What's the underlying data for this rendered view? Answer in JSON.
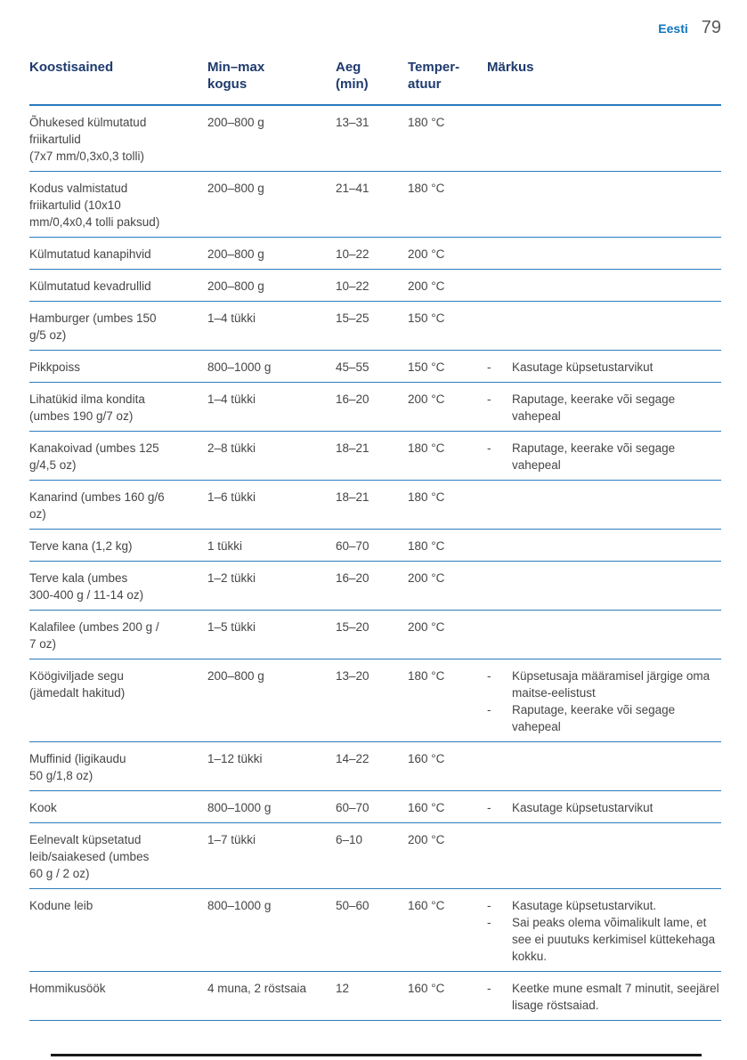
{
  "page": {
    "language_label": "Eesti",
    "page_number": "79"
  },
  "colors": {
    "accent_blue": "#1175bc",
    "header_navy": "#1e3a6e",
    "rule_blue": "#2b7cbd",
    "body_text": "#454545",
    "page_number_gray": "#58585a",
    "footer_rule": "#1a1a1a"
  },
  "table": {
    "columns": [
      {
        "label": "Koostisained"
      },
      {
        "label": "Min–max\nkogus"
      },
      {
        "label": "Aeg\n(min)"
      },
      {
        "label": "Temper-\natuur"
      },
      {
        "label": "Märkus"
      }
    ],
    "note_dash": "-",
    "rows": [
      {
        "ingredient": "Õhukesed külmutatud\nfriikartulid\n(7x7 mm/0,3x0,3 tolli)",
        "quantity": "200–800 g",
        "time": "13–31",
        "temperature": "180 °C",
        "notes": []
      },
      {
        "ingredient": "Kodus valmistatud\nfriikartulid (10x10\nmm/0,4x0,4 tolli paksud)",
        "quantity": "200–800 g",
        "time": "21–41",
        "temperature": "180 °C",
        "notes": []
      },
      {
        "ingredient": "Külmutatud kanapihvid",
        "quantity": "200–800 g",
        "time": "10–22",
        "temperature": "200 °C",
        "notes": []
      },
      {
        "ingredient": "Külmutatud kevadrullid",
        "quantity": "200–800 g",
        "time": "10–22",
        "temperature": "200 °C",
        "notes": []
      },
      {
        "ingredient": "Hamburger (umbes 150\ng/5 oz)",
        "quantity": "1–4 tükki",
        "time": "15–25",
        "temperature": "150 °C",
        "notes": []
      },
      {
        "ingredient": "Pikkpoiss",
        "quantity": "800–1000 g",
        "time": "45–55",
        "temperature": "150 °C",
        "notes": [
          "Kasutage küpsetustarvikut"
        ]
      },
      {
        "ingredient": "Lihatükid ilma kondita\n(umbes 190 g/7 oz)",
        "quantity": "1–4 tükki",
        "time": "16–20",
        "temperature": "200 °C",
        "notes": [
          "Raputage, keerake või segage vahepeal"
        ]
      },
      {
        "ingredient": "Kanakoivad (umbes 125\ng/4,5 oz)",
        "quantity": "2–8 tükki",
        "time": "18–21",
        "temperature": "180 °C",
        "notes": [
          "Raputage, keerake või segage vahepeal"
        ]
      },
      {
        "ingredient": "Kanarind (umbes 160 g/6\noz)",
        "quantity": "1–6 tükki",
        "time": "18–21",
        "temperature": "180 °C",
        "notes": []
      },
      {
        "ingredient": "Terve kana (1,2 kg)",
        "quantity": "1 tükki",
        "time": "60–70",
        "temperature": "180 °C",
        "notes": []
      },
      {
        "ingredient": "Terve kala (umbes\n300-400 g / 11-14 oz)",
        "quantity": "1–2 tükki",
        "time": "16–20",
        "temperature": "200 °C",
        "notes": []
      },
      {
        "ingredient": "Kalafilee (umbes 200 g /\n7 oz)",
        "quantity": "1–5 tükki",
        "time": "15–20",
        "temperature": "200 °C",
        "notes": []
      },
      {
        "ingredient": "Köögiviljade segu\n(jämedalt hakitud)",
        "quantity": "200–800 g",
        "time": "13–20",
        "temperature": "180 °C",
        "notes": [
          "Küpsetusaja määramisel järgige oma maitse-eelistust",
          "Raputage, keerake või segage vahepeal"
        ]
      },
      {
        "ingredient": "Muffinid (ligikaudu\n50 g/1,8 oz)",
        "quantity": "1–12 tükki",
        "time": "14–22",
        "temperature": "160 °C",
        "notes": []
      },
      {
        "ingredient": "Kook",
        "quantity": "800–1000 g",
        "time": "60–70",
        "temperature": "160 °C",
        "notes": [
          "Kasutage küpsetustarvikut"
        ]
      },
      {
        "ingredient": "Eelnevalt küpsetatud\nleib/saiakesed (umbes\n60 g / 2 oz)",
        "quantity": "1–7 tükki",
        "time": "6–10",
        "temperature": "200 °C",
        "notes": []
      },
      {
        "ingredient": "Kodune leib",
        "quantity": "800–1000 g",
        "time": "50–60",
        "temperature": "160 °C",
        "notes": [
          "Kasutage küpsetustarvikut.",
          "Sai peaks olema võimalikult lame, et see ei puutuks kerkimisel küttekehaga kokku."
        ]
      },
      {
        "ingredient": "Hommikusöök",
        "quantity": "4 muna, 2 röstsaia",
        "time": "12",
        "temperature": "160 °C",
        "notes": [
          "Keetke mune esmalt 7 minutit, seejärel lisage röstsaiad."
        ]
      }
    ]
  }
}
